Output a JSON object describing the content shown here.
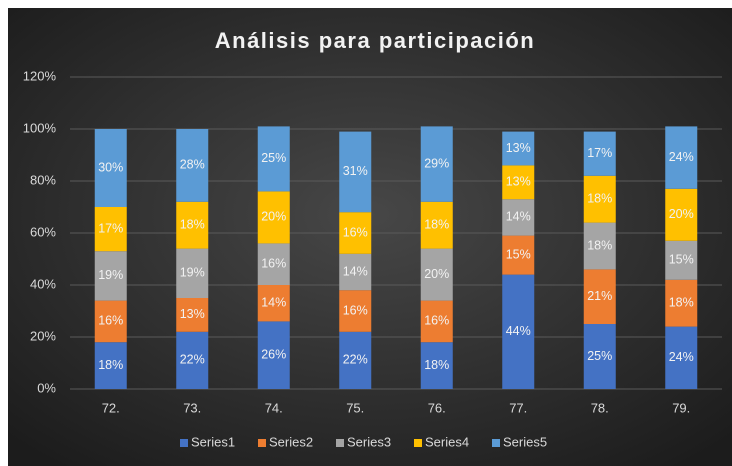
{
  "chart_data": {
    "type": "stacked_bar",
    "title": "Análisis para participación",
    "categories": [
      "72.",
      "73.",
      "74.",
      "75.",
      "76.",
      "77.",
      "78.",
      "79."
    ],
    "series": [
      {
        "name": "Series1",
        "color": "#4472c4",
        "values": [
          18,
          22,
          26,
          22,
          18,
          44,
          25,
          24
        ],
        "value_labels": [
          "18%",
          "22%",
          "26%",
          "22%",
          "18%",
          "44%",
          "25%",
          "24%"
        ]
      },
      {
        "name": "Series2",
        "color": "#ed7d31",
        "values": [
          16,
          13,
          14,
          16,
          16,
          15,
          21,
          18
        ],
        "value_labels": [
          "16%",
          "13%",
          "14%",
          "16%",
          "16%",
          "15%",
          "21%",
          "18%"
        ]
      },
      {
        "name": "Series3",
        "color": "#a5a5a5",
        "values": [
          19,
          19,
          16,
          14,
          20,
          14,
          18,
          15
        ],
        "value_labels": [
          "19%",
          "19%",
          "16%",
          "14%",
          "20%",
          "14%",
          "18%",
          "15%"
        ]
      },
      {
        "name": "Series4",
        "color": "#ffc000",
        "values": [
          17,
          18,
          20,
          16,
          18,
          13,
          18,
          20
        ],
        "value_labels": [
          "17%",
          "18%",
          "20%",
          "16%",
          "18%",
          "13%",
          "18%",
          "20%"
        ]
      },
      {
        "name": "Series5",
        "color": "#5b9bd5",
        "values": [
          30,
          28,
          25,
          31,
          29,
          13,
          17,
          24
        ],
        "value_labels": [
          "30%",
          "28%",
          "25%",
          "31%",
          "29%",
          "13%",
          "17%",
          "24%"
        ]
      }
    ],
    "ylim": [
      0,
      120
    ],
    "yticks": [
      {
        "value": 0,
        "label": "0%"
      },
      {
        "value": 20,
        "label": "20%"
      },
      {
        "value": 40,
        "label": "40%"
      },
      {
        "value": 60,
        "label": "60%"
      },
      {
        "value": 80,
        "label": "80%"
      },
      {
        "value": 100,
        "label": "100%"
      },
      {
        "value": 120,
        "label": "120%"
      }
    ],
    "grid": true,
    "legend": "bottom"
  }
}
